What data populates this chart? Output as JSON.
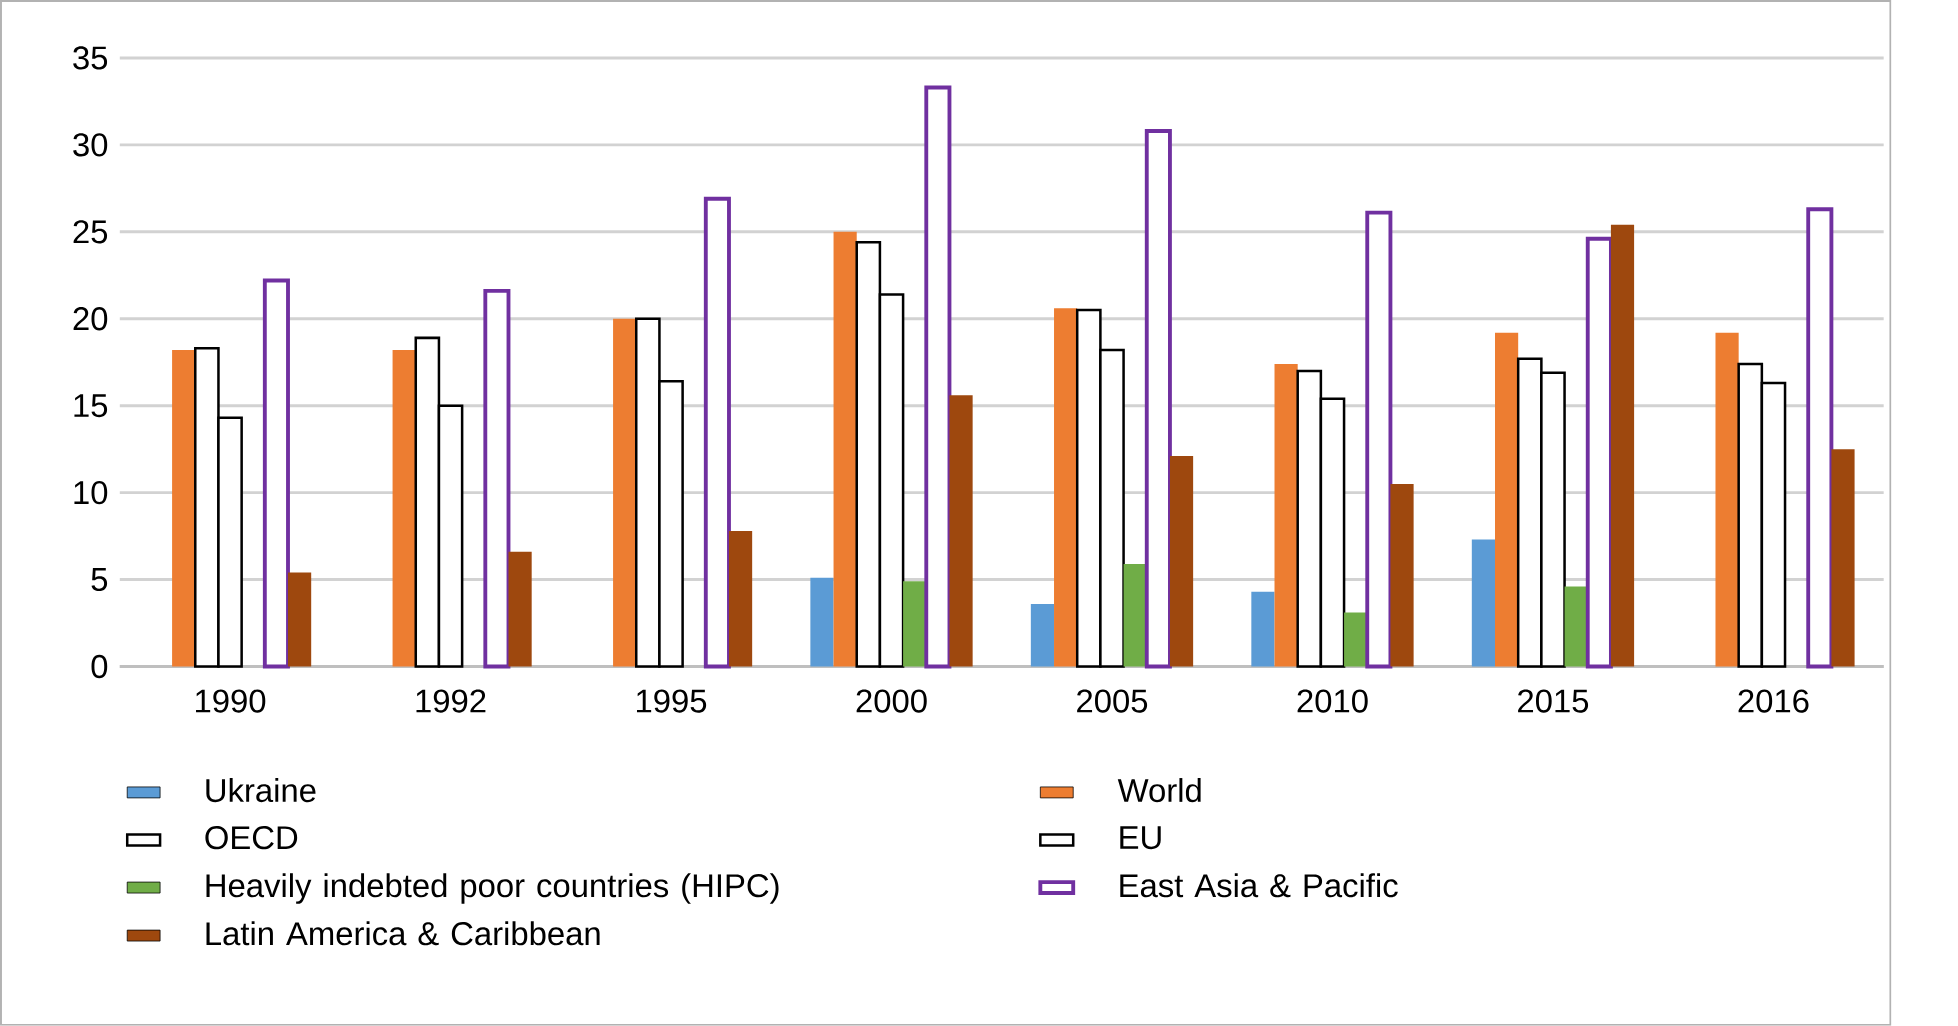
{
  "chart_data": {
    "type": "bar",
    "categories": [
      "1990",
      "1992",
      "1995",
      "2000",
      "2005",
      "2010",
      "2015",
      "2016"
    ],
    "series": [
      {
        "name": "Ukraine",
        "color": "#5b9bd5",
        "values": [
          null,
          null,
          null,
          5.1,
          3.6,
          4.3,
          7.3,
          null
        ]
      },
      {
        "name": "World",
        "color": "#ed7d31",
        "values": [
          18.2,
          18.2,
          20.0,
          25.0,
          20.6,
          17.4,
          19.2,
          19.2
        ]
      },
      {
        "name": "OECD",
        "color": "#000000",
        "values": [
          18.3,
          18.9,
          20.0,
          24.4,
          20.5,
          17.0,
          17.7,
          17.4
        ]
      },
      {
        "name": "EU",
        "color": "#000000",
        "values": [
          14.3,
          15.0,
          16.4,
          21.4,
          18.2,
          15.4,
          16.9,
          16.3
        ]
      },
      {
        "name": "Heavily indebted poor countries (HIPC)",
        "color": "#70ad47",
        "values": [
          null,
          null,
          null,
          4.9,
          5.9,
          3.1,
          4.6,
          null
        ]
      },
      {
        "name": "East Asia & Pacific",
        "color": "#7030a0",
        "values": [
          22.2,
          21.6,
          26.9,
          33.3,
          30.8,
          26.1,
          24.6,
          26.3
        ]
      },
      {
        "name": "Latin America & Caribbean",
        "color": "#9e480e",
        "values": [
          5.4,
          6.6,
          7.8,
          15.6,
          12.1,
          10.5,
          25.4,
          12.5
        ]
      }
    ],
    "ylim": [
      0,
      35
    ],
    "yticks": [
      0,
      5,
      10,
      15,
      20,
      25,
      30,
      35
    ],
    "grid": "y",
    "legend": "bottom"
  }
}
